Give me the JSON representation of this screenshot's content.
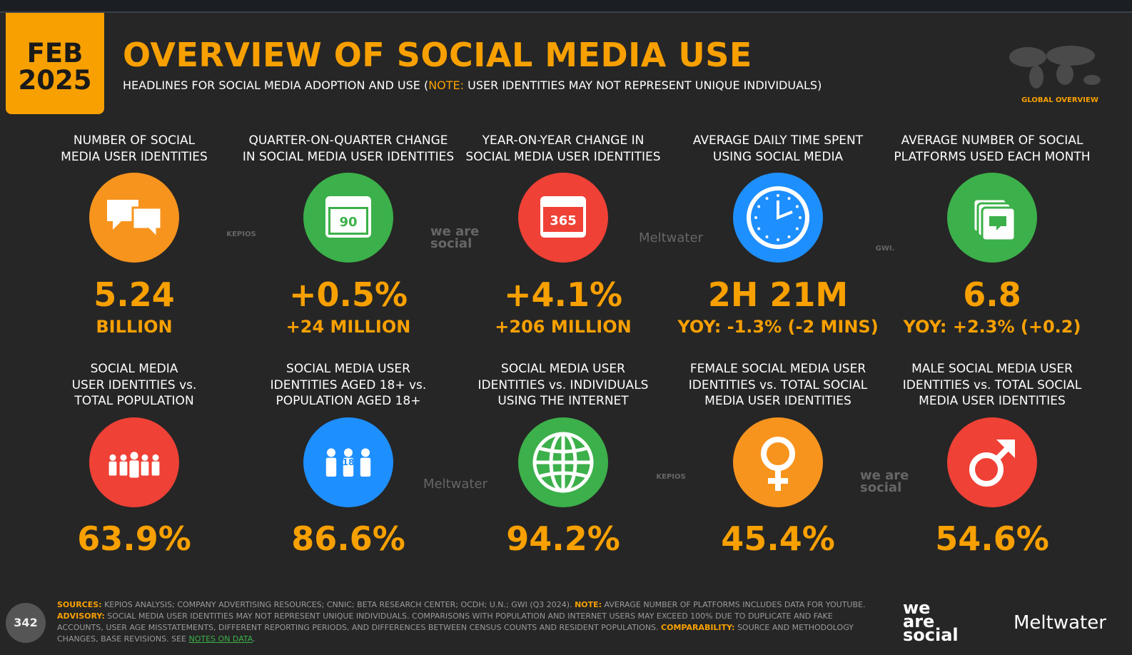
{
  "header": {
    "date_month": "FEB",
    "date_year": "2025",
    "title": "OVERVIEW OF SOCIAL MEDIA USE",
    "subtitle_start": "HEADLINES FOR SOCIAL MEDIA ADOPTION AND USE (",
    "subtitle_note": "NOTE:",
    "subtitle_end": " USER IDENTITIES MAY NOT REPRESENT UNIQUE INDIVIDUALS)",
    "badge": "GLOBAL OVERVIEW"
  },
  "stats": [
    {
      "label": [
        "NUMBER OF SOCIAL",
        "MEDIA USER IDENTITIES"
      ],
      "value": "5.24",
      "sub": "BILLION"
    },
    {
      "label": [
        "QUARTER-ON-QUARTER CHANGE",
        "IN SOCIAL MEDIA USER IDENTITIES"
      ],
      "value": "+0.5%",
      "sub": "+24 MILLION",
      "icon_text": "90"
    },
    {
      "label": [
        "YEAR-ON-YEAR CHANGE IN",
        "SOCIAL MEDIA USER IDENTITIES"
      ],
      "value": "+4.1%",
      "sub": "+206 MILLION",
      "icon_text": "365"
    },
    {
      "label": [
        "AVERAGE DAILY TIME SPENT",
        "USING SOCIAL MEDIA"
      ],
      "value": "2H 21M",
      "sub": "YOY: -1.3% (-2 MINS)"
    },
    {
      "label": [
        "AVERAGE NUMBER OF SOCIAL",
        "PLATFORMS USED EACH MONTH"
      ],
      "value": "6.8",
      "sub": "YOY: +2.3% (+0.2)"
    },
    {
      "label": [
        "SOCIAL MEDIA",
        "USER IDENTITIES vs.",
        "TOTAL POPULATION"
      ],
      "value": "63.9%"
    },
    {
      "label": [
        "SOCIAL MEDIA USER",
        "IDENTITIES AGED 18+ vs.",
        "POPULATION AGED 18+"
      ],
      "value": "86.6%",
      "icon_text": "18"
    },
    {
      "label": [
        "SOCIAL MEDIA USER",
        "IDENTITIES vs. INDIVIDUALS",
        "USING THE INTERNET"
      ],
      "value": "94.2%"
    },
    {
      "label": [
        "FEMALE SOCIAL MEDIA USER",
        "IDENTITIES vs. TOTAL SOCIAL",
        "MEDIA USER IDENTITIES"
      ],
      "value": "45.4%"
    },
    {
      "label": [
        "MALE SOCIAL MEDIA USER",
        "IDENTITIES vs. TOTAL SOCIAL",
        "MEDIA USER IDENTITIES"
      ],
      "value": "54.6%"
    }
  ],
  "watermarks": [
    "KEPIOS",
    "we are social",
    "Meltwater",
    "GWI.",
    "Meltwater",
    "KEPIOS",
    "we are social"
  ],
  "footer": {
    "page_number": "342",
    "sources_label": "SOURCES:",
    "sources": " KEPIOS ANALYSIS; COMPANY ADVERTISING RESOURCES; CNNIC; BETA RESEARCH CENTER; OCDH; U.N.; GWI (Q3 2024). ",
    "note_label": "NOTE:",
    "note": " AVERAGE NUMBER OF PLATFORMS INCLUDES DATA FOR YOUTUBE. ",
    "advisory_label": "ADVISORY:",
    "advisory": " SOCIAL MEDIA USER IDENTITIES MAY NOT REPRESENT UNIQUE INDIVIDUALS. COMPARISONS WITH POPULATION AND INTERNET USERS MAY EXCEED 100% DUE TO DUPLICATE AND FAKE ACCOUNTS, USER AGE MISSTATEMENTS, DIFFERENT REPORTING PERIODS, AND DIFFERENCES BETWEEN CENSUS COUNTS AND RESIDENT POPULATIONS. ",
    "comparability_label": "COMPARABILITY:",
    "comparability": " SOURCE AND METHODOLOGY CHANGES, BASE REVISIONS. SEE ",
    "link": "NOTES ON DATA",
    "end": ".",
    "logo_wearesocial": "we are social",
    "logo_meltwater": "Meltwater"
  }
}
